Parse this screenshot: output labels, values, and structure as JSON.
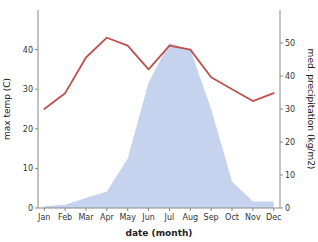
{
  "chart_data": {
    "type": "line",
    "categories": [
      "Jan",
      "Feb",
      "Mar",
      "Apr",
      "May",
      "Jun",
      "Jul",
      "Aug",
      "Sep",
      "Oct",
      "Nov",
      "Dec"
    ],
    "xlabel": "date (month)",
    "ylabel": "max temp (C)",
    "y2label": "med. precipitation (kg/m2)",
    "ylim": [
      0,
      50
    ],
    "yticks": [
      0,
      10,
      20,
      30,
      40
    ],
    "y2lim": [
      0,
      60
    ],
    "y2ticks": [
      0,
      10,
      20,
      30,
      40,
      50
    ],
    "grid": false,
    "series": [
      {
        "type": "area",
        "axis": "y2",
        "color": "#c5d3ee",
        "values": [
          0.5,
          1.0,
          3.0,
          5.0,
          15.0,
          38.0,
          50.0,
          48.0,
          30.0,
          8.0,
          2.0,
          2.0
        ]
      },
      {
        "type": "line",
        "color": "#c0504d",
        "values": [
          25,
          29,
          38,
          43,
          41,
          35,
          41,
          40,
          33,
          30,
          27,
          29
        ]
      }
    ]
  }
}
